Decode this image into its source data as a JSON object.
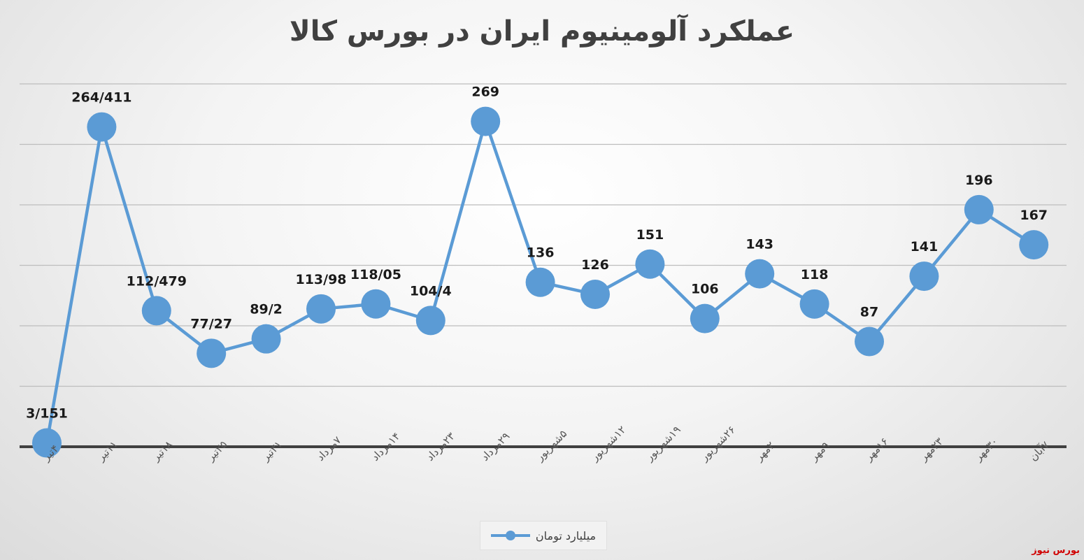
{
  "chart_data": {
    "type": "line",
    "title": "عملکرد آلومینیوم ایران در بورس کالا",
    "xlabel": "",
    "ylabel": "",
    "ylim": [
      0,
      300
    ],
    "grid": true,
    "legend_position": "bottom",
    "categories": [
      "۴تیر",
      "۱۱تیر",
      "۱۸تیر",
      "۲۵تیر",
      "۳۱تیر",
      "۷مرداد",
      "۱۴مرداد",
      "۲۳مرداد",
      "۲۹مرداد",
      "۵شهریور",
      "۱۲شهریور",
      "۱۹شهریور",
      "۲۶شهریور",
      "۲مهر",
      "۹مهر",
      "۱۶مهر",
      "۲۳مهر",
      "۳۰مهر",
      "۷آبان"
    ],
    "series": [
      {
        "name": "میلیارد تومان",
        "color": "#5b9bd5",
        "values": [
          3.151,
          264.411,
          112.479,
          77.27,
          89.2,
          113.98,
          118.05,
          104.4,
          269,
          136,
          126,
          151,
          106,
          143,
          118,
          87,
          141,
          196,
          167
        ],
        "labels": [
          "3/151",
          "264/411",
          "112/479",
          "77/27",
          "89/2",
          "113/98",
          "118/05",
          "104/4",
          "269",
          "136",
          "126",
          "151",
          "106",
          "143",
          "118",
          "87",
          "141",
          "196",
          "167"
        ]
      }
    ]
  },
  "legend": {
    "label": "میلیارد تومان"
  },
  "watermark": {
    "text": "بورس نیوز"
  }
}
